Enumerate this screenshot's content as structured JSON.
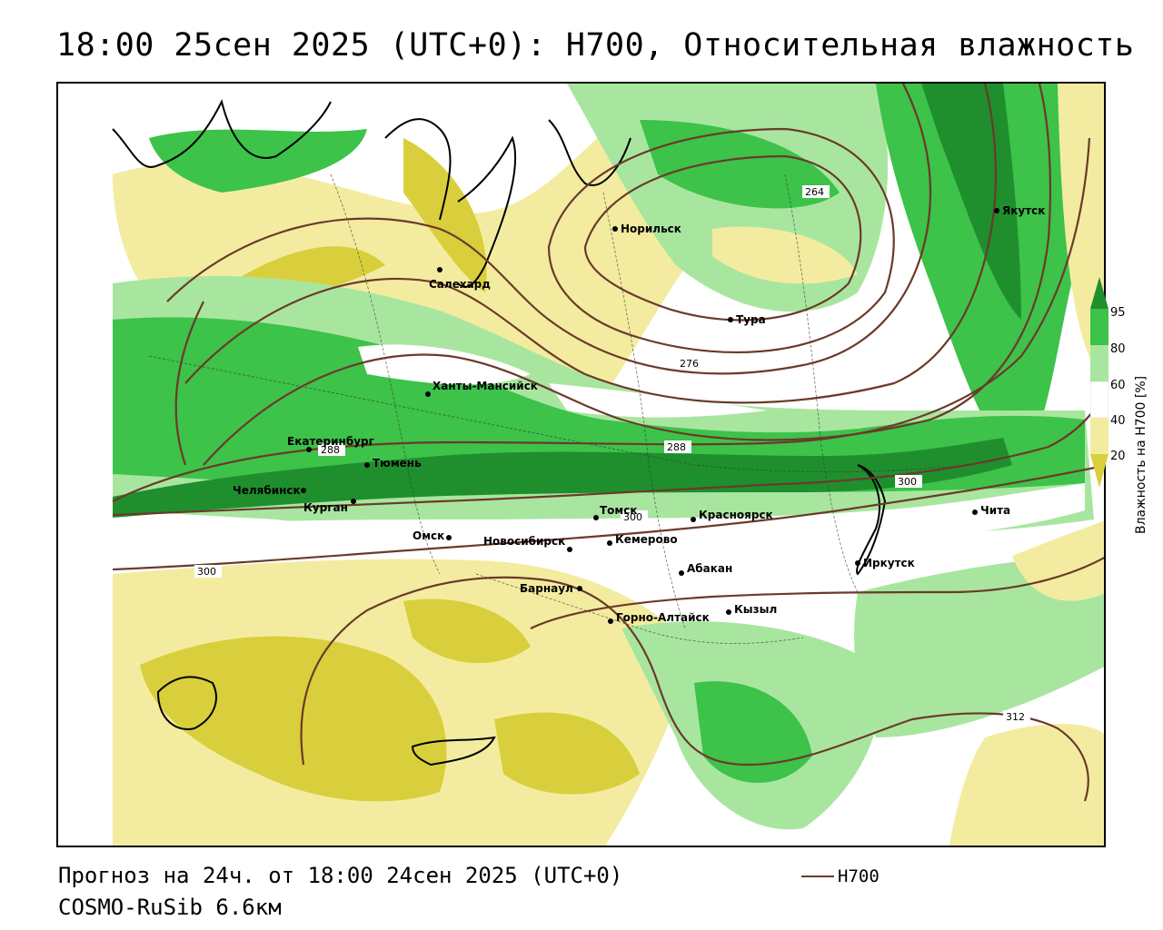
{
  "title": "18:00 25сен 2025 (UTC+0): H700, Относительная влажность",
  "footer": {
    "forecast": "Прогноз на 24ч. от 18:00 24сен 2025 (UTC+0)",
    "model": "COSMO-RuSib 6.6км",
    "legend_label": "H700"
  },
  "colorbar": {
    "title": "Влажность на H700 [%]",
    "ticks": [
      "95",
      "80",
      "60",
      "40",
      "20"
    ],
    "colors": [
      "#1f8f2e",
      "#3dc24a",
      "#a8e6a0",
      "#ffffff",
      "#f3eca0",
      "#d9cf3c"
    ]
  },
  "contour_color": "#6b3a2a",
  "contour_labels": [
    "264",
    "276",
    "288",
    "288",
    "300",
    "300",
    "300",
    "312"
  ],
  "cities": [
    "Норильск",
    "Якутск",
    "Салехард",
    "Тура",
    "Ханты-Мансийск",
    "Екатеринбург",
    "Тюмень",
    "Челябинск",
    "Курган",
    "Омск",
    "Новосибирск",
    "Томск",
    "Кемерово",
    "Красноярск",
    "Барнаул",
    "Абакан",
    "Горно-Алтайск",
    "Кызыл",
    "Иркутск",
    "Чита"
  ]
}
